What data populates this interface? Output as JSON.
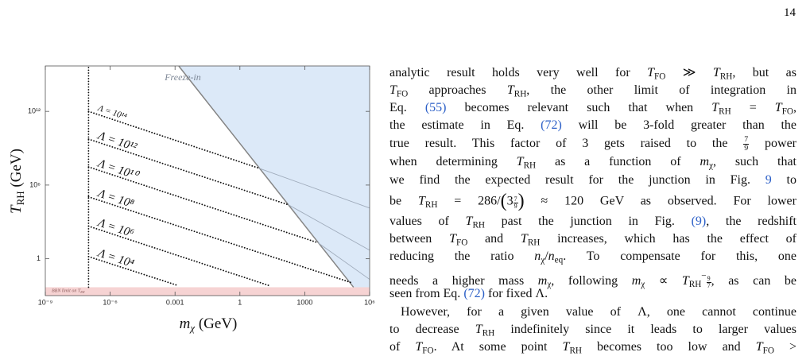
{
  "page_number": "14",
  "figure": {
    "chart_data": {
      "type": "line",
      "xscale": "log",
      "yscale": "log",
      "xlim": [
        1e-09,
        1000000.0
      ],
      "ylim": [
        0.001,
        5000000000000000.0
      ],
      "xticks": [
        {
          "value": 1e-09,
          "label": "10⁻⁹"
        },
        {
          "value": 1e-06,
          "label": "10⁻⁶"
        },
        0.001,
        1,
        1000,
        {
          "value": 1000000.0,
          "label": "10⁶"
        }
      ],
      "yticks": [
        1,
        {
          "value": 1000000.0,
          "label": "10⁶"
        },
        {
          "value": 1000000000000.0,
          "label": "10¹²"
        }
      ],
      "xlabel": {
        "main": "m",
        "sub": "χ",
        "unit": " (GeV)"
      },
      "ylabel": {
        "main": "T",
        "sub": "RH",
        "unit": " (GeV)"
      },
      "region_label": "Freeze-in",
      "region_color": "#dce9f8",
      "bbn": {
        "ylim": [
          0.001,
          0.0048
        ],
        "color": "#f6d3d3",
        "text": "BBN limit on ",
        "main": "T",
        "sub": "RH"
      },
      "series": [
        {
          "style": "solid",
          "color": "#858585",
          "x": [
            0.0015,
            180000
          ],
          "y": [
            4800000000000000.0,
            0.0048
          ]
        },
        {
          "style": "dotted",
          "color": "#111111",
          "x": [
            1e-07,
            1e-07
          ],
          "y": [
            0.0048,
            5000000000000000.0
          ]
        },
        {
          "style": "dotted",
          "color": "#111111",
          "label": "Λ = 10¹⁴",
          "x": [
            1e-07,
            7.4
          ],
          "y": [
            1000000000000.0,
            24000000.0
          ]
        },
        {
          "style": "dotted",
          "color": "#111111",
          "label": "Λ = 10¹²",
          "x": [
            1e-07,
            174
          ],
          "y": [
            5500000000.0,
            25000
          ]
        },
        {
          "style": "dotted",
          "color": "#111111",
          "label": "Λ = 10¹⁰",
          "x": [
            1e-07,
            4100
          ],
          "y": [
            30000000.0,
            20
          ]
        },
        {
          "style": "dotted",
          "color": "#111111",
          "label": "Λ = 10⁸",
          "x": [
            1e-07,
            130000
          ],
          "y": [
            110000,
            0.012
          ]
        },
        {
          "style": "dotted",
          "color": "#111111",
          "label": "Λ = 10⁶",
          "x": [
            1e-07,
            23
          ],
          "y": [
            450,
            0.0065
          ]
        },
        {
          "style": "dotted",
          "color": "#111111",
          "label": "Λ = 10⁴",
          "x": [
            1e-07,
            0.0014
          ],
          "y": [
            1.5,
            0.0065
          ]
        },
        {
          "style": "thin",
          "color": "#9fabbb",
          "x": [
            7.4,
            1000000.0
          ],
          "y": [
            24000000.0,
            13500
          ]
        },
        {
          "style": "thin",
          "color": "#9fabbb",
          "x": [
            174,
            1000000.0
          ],
          "y": [
            25000,
            5
          ]
        },
        {
          "style": "thin",
          "color": "#9fabbb",
          "x": [
            4100,
            1000000.0
          ],
          "y": [
            20,
            0.021
          ]
        }
      ]
    }
  },
  "text": {
    "lines": [
      [
        "analytic result holds very well for ",
        [
          "T",
          "i"
        ],
        [
          "FO",
          "sub"
        ],
        " ≫ ",
        [
          "T",
          "i"
        ],
        [
          "RH",
          "sub"
        ],
        ", but as"
      ],
      [
        [
          "T",
          "i"
        ],
        [
          "FO",
          "sub"
        ],
        " approaches ",
        [
          "T",
          "i"
        ],
        [
          "RH",
          "sub"
        ],
        ", the other limit of integration in"
      ],
      [
        "Eq. ",
        [
          "(55)",
          "link"
        ],
        " becomes relevant such that when ",
        [
          "T",
          "i"
        ],
        [
          "RH",
          "sub"
        ],
        " = ",
        [
          "T",
          "i"
        ],
        [
          "FO",
          "sub"
        ],
        ","
      ],
      [
        "the estimate in Eq. ",
        [
          "(72)",
          "link"
        ],
        " will be 3-fold greater than the"
      ],
      [
        "true result. This factor of 3 gets raised to the ",
        {
          "num": "7",
          "den": "9"
        },
        " power"
      ],
      [
        "when determining ",
        [
          "T",
          "i"
        ],
        [
          "RH",
          "sub"
        ],
        " as a function of ",
        [
          "m",
          "i"
        ],
        [
          "χ",
          "sub"
        ],
        ", such that"
      ],
      [
        "we find the expected result for the junction in Fig. ",
        [
          "9",
          "link"
        ],
        " to"
      ],
      [
        "be ",
        [
          "T",
          "i"
        ],
        [
          "RH",
          "sub"
        ],
        " = 286/",
        [
          "(",
          "big"
        ],
        "3",
        {
          "num": "7",
          "den": "9",
          "style": "sup"
        },
        [
          ")",
          "big"
        ],
        " ≈ 120 GeV as observed. For lower"
      ],
      [
        "values of ",
        [
          "T",
          "i"
        ],
        [
          "RH",
          "sub"
        ],
        " past the junction in Fig. ",
        [
          "(9)",
          "link"
        ],
        ", the redshift"
      ],
      [
        "between ",
        [
          "T",
          "i"
        ],
        [
          "FO",
          "sub"
        ],
        " and ",
        [
          "T",
          "i"
        ],
        [
          "RH",
          "sub"
        ],
        " increases, which has the effect of"
      ],
      [
        "reducing the ratio ",
        [
          "n",
          "i"
        ],
        [
          "χ",
          "sub"
        ],
        "/",
        [
          "n",
          "i"
        ],
        [
          "eq",
          "sub"
        ],
        ". To compensate for this, one"
      ],
      [
        "needs a higher mass ",
        [
          "m",
          "i"
        ],
        [
          "χ",
          "sub"
        ],
        ", following ",
        [
          "m",
          "i"
        ],
        [
          "χ",
          "sub"
        ],
        " ∝ ",
        [
          "T",
          "i"
        ],
        [
          "RH",
          "sub"
        ],
        [
          "−",
          "sup"
        ],
        {
          "num": "9",
          "den": "7",
          "style": "sup"
        },
        ", as can be"
      ],
      [
        "seen from Eq. ",
        [
          "(72)",
          "link"
        ],
        " for fixed Λ."
      ],
      [
        "However, for a given value of Λ, one cannot continue"
      ],
      [
        "to decrease ",
        [
          "T",
          "i"
        ],
        [
          "RH",
          "sub"
        ],
        " indefinitely since it leads to larger values"
      ],
      [
        "of ",
        [
          "T",
          "i"
        ],
        [
          "FO",
          "sub"
        ],
        ". At some point ",
        [
          "T",
          "i"
        ],
        [
          "RH",
          "sub"
        ],
        " becomes too low and ",
        [
          "T",
          "i"
        ],
        [
          "FO",
          "sub"
        ],
        " >"
      ]
    ]
  }
}
